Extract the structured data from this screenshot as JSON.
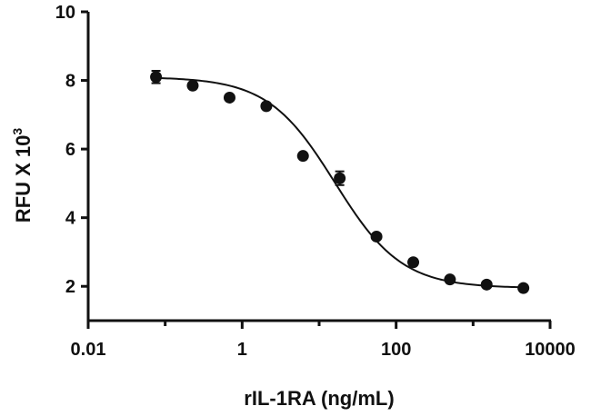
{
  "chart_data": {
    "type": "scatter",
    "xlabel": "rIL-1RA (ng/mL)",
    "ylabel": {
      "main": "RFU X 10",
      "superscript": "3"
    },
    "xscale": "log",
    "xlim": [
      0.01,
      10000
    ],
    "ylim": [
      1,
      10
    ],
    "xticks": [
      0.01,
      1,
      100,
      10000
    ],
    "xtick_labels": [
      "0.01",
      "1",
      "100",
      "10000"
    ],
    "yticks": [
      2,
      4,
      6,
      8,
      10
    ],
    "ytick_labels": [
      "2",
      "4",
      "6",
      "8",
      "10"
    ],
    "grid": false,
    "series": [
      {
        "x": [
          0.076,
          0.228,
          0.686,
          2.06,
          6.17,
          18.5,
          55.6,
          167,
          500,
          1500,
          4500
        ],
        "y": [
          8.1,
          7.85,
          7.5,
          7.25,
          5.8,
          5.15,
          3.45,
          2.7,
          2.2,
          2.05,
          1.95
        ],
        "y_err": [
          0.18,
          0.05,
          0.05,
          0.05,
          0.08,
          0.2,
          0.05,
          0.05,
          0.05,
          0.05,
          0.05
        ]
      }
    ],
    "fit": {
      "model": "4PL",
      "top": 8.1,
      "bottom": 1.95,
      "ec50": 16,
      "hill": 1.0
    }
  }
}
